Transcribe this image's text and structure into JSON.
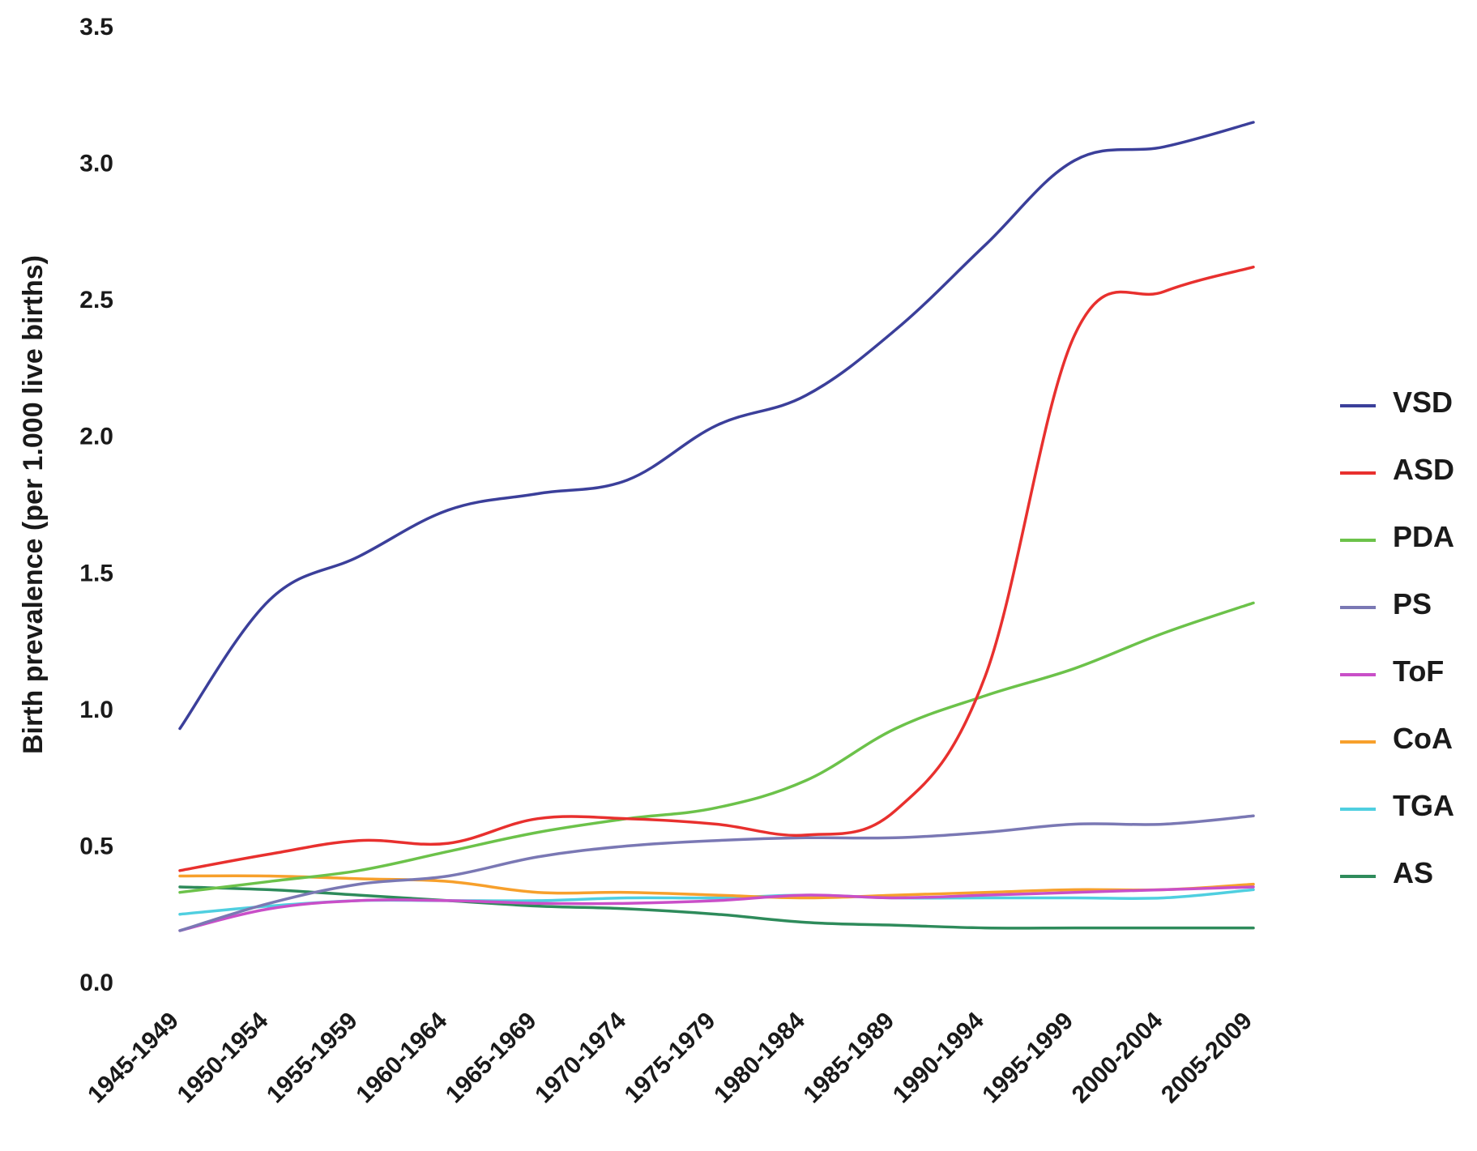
{
  "chart_data": {
    "type": "line",
    "title": "",
    "xlabel": "",
    "ylabel": "Birth prevalence (per 1.000 live births)",
    "ylim": [
      0,
      3.5
    ],
    "yticks": [
      "0.0",
      "0.5",
      "1.0",
      "1.5",
      "2.0",
      "2.5",
      "3.0",
      "3.5"
    ],
    "categories": [
      "1945-1949",
      "1950-1954",
      "1955-1959",
      "1960-1964",
      "1965-1969",
      "1970-1974",
      "1975-1979",
      "1980-1984",
      "1985-1989",
      "1990-1994",
      "1995-1999",
      "2000-2004",
      "2005-2009"
    ],
    "grid": false,
    "legend_position": "right",
    "series": [
      {
        "name": "VSD",
        "color": "#3b3f9a",
        "values": [
          0.93,
          1.4,
          1.56,
          1.73,
          1.79,
          1.84,
          2.04,
          2.15,
          2.39,
          2.7,
          3.01,
          3.06,
          3.15
        ]
      },
      {
        "name": "ASD",
        "color": "#e8302e",
        "values": [
          0.41,
          0.47,
          0.52,
          0.51,
          0.6,
          0.6,
          0.58,
          0.54,
          0.63,
          1.12,
          2.37,
          2.53,
          2.62
        ]
      },
      {
        "name": "PDA",
        "color": "#6cc24a",
        "values": [
          0.33,
          0.37,
          0.41,
          0.48,
          0.55,
          0.6,
          0.64,
          0.74,
          0.93,
          1.05,
          1.15,
          1.28,
          1.39
        ]
      },
      {
        "name": "PS",
        "color": "#7a78b4",
        "values": [
          0.19,
          0.29,
          0.36,
          0.39,
          0.46,
          0.5,
          0.52,
          0.53,
          0.53,
          0.55,
          0.58,
          0.58,
          0.61
        ]
      },
      {
        "name": "ToF",
        "color": "#c94fc8",
        "values": [
          0.19,
          0.27,
          0.3,
          0.3,
          0.29,
          0.29,
          0.3,
          0.32,
          0.31,
          0.32,
          0.33,
          0.34,
          0.35
        ]
      },
      {
        "name": "CoA",
        "color": "#f7a02c",
        "values": [
          0.39,
          0.39,
          0.38,
          0.37,
          0.33,
          0.33,
          0.32,
          0.31,
          0.32,
          0.33,
          0.34,
          0.34,
          0.36
        ]
      },
      {
        "name": "TGA",
        "color": "#4fcfe0",
        "values": [
          0.25,
          0.28,
          0.3,
          0.3,
          0.3,
          0.31,
          0.31,
          0.32,
          0.31,
          0.31,
          0.31,
          0.31,
          0.34
        ]
      },
      {
        "name": "AS",
        "color": "#2e8b5b",
        "values": [
          0.35,
          0.34,
          0.32,
          0.3,
          0.28,
          0.27,
          0.25,
          0.22,
          0.21,
          0.2,
          0.2,
          0.2,
          0.2
        ]
      }
    ]
  }
}
